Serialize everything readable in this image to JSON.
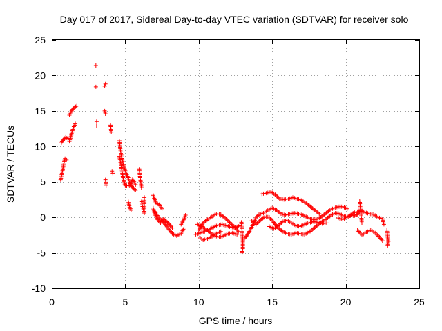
{
  "chart_data": {
    "type": "scatter",
    "title": "Day 017 of 2017, Sidereal Day-to-day VTEC variation (SDTVAR) for receiver solo",
    "xlabel": "GPS time / hours",
    "ylabel": "SDTVAR / TECUs",
    "xlim": [
      0,
      25
    ],
    "ylim": [
      -10,
      25
    ],
    "xticks": [
      0,
      5,
      10,
      15,
      20,
      25
    ],
    "yticks": [
      -10,
      -5,
      0,
      5,
      10,
      15,
      20,
      25
    ],
    "grid": true,
    "marker": "+",
    "color": "#ff0000",
    "series": [
      {
        "name": "SDTVAR",
        "tracks": [
          [
            [
              0.6,
              5.3
            ],
            [
              0.7,
              6.2
            ],
            [
              0.8,
              7.4
            ],
            [
              0.9,
              8.3
            ],
            [
              1.0,
              8.1
            ]
          ],
          [
            [
              0.65,
              10.5
            ],
            [
              0.8,
              11.0
            ],
            [
              0.95,
              11.3
            ],
            [
              1.1,
              11.1
            ]
          ],
          [
            [
              1.2,
              10.7
            ],
            [
              1.3,
              11.4
            ],
            [
              1.4,
              12.2
            ],
            [
              1.5,
              12.8
            ],
            [
              1.6,
              13.2
            ]
          ],
          [
            [
              1.2,
              14.4
            ],
            [
              1.3,
              14.8
            ],
            [
              1.4,
              15.2
            ],
            [
              1.55,
              15.5
            ],
            [
              1.7,
              15.7
            ]
          ],
          [
            [
              3.0,
              21.4
            ]
          ],
          [
            [
              3.0,
              18.4
            ]
          ],
          [
            [
              3.05,
              13.5
            ]
          ],
          [
            [
              3.05,
              12.9
            ]
          ],
          [
            [
              3.6,
              18.5
            ],
            [
              3.65,
              18.8
            ]
          ],
          [
            [
              3.6,
              15.0
            ],
            [
              3.65,
              14.6
            ]
          ],
          [
            [
              3.65,
              5.3
            ],
            [
              3.7,
              4.5
            ]
          ],
          [
            [
              4.0,
              13.0
            ],
            [
              4.05,
              12.0
            ]
          ],
          [
            [
              4.1,
              6.5
            ],
            [
              4.15,
              6.2
            ]
          ],
          [
            [
              4.6,
              10.8
            ],
            [
              4.65,
              9.9
            ],
            [
              4.7,
              9.0
            ],
            [
              4.8,
              8.1
            ],
            [
              4.9,
              7.2
            ],
            [
              5.0,
              6.6
            ],
            [
              5.1,
              6.0
            ],
            [
              5.2,
              5.6
            ],
            [
              5.3,
              4.9
            ],
            [
              5.5,
              4.2
            ],
            [
              5.7,
              3.8
            ]
          ],
          [
            [
              4.6,
              8.6
            ],
            [
              4.7,
              7.5
            ],
            [
              4.8,
              6.2
            ],
            [
              4.9,
              5.0
            ],
            [
              5.0,
              4.5
            ],
            [
              5.3,
              4.4
            ],
            [
              5.5,
              5.4
            ],
            [
              5.7,
              4.6
            ]
          ],
          [
            [
              5.2,
              2.3
            ],
            [
              5.3,
              1.4
            ],
            [
              5.4,
              1.0
            ]
          ],
          [
            [
              5.95,
              6.8
            ],
            [
              6.0,
              5.8
            ],
            [
              6.05,
              5.0
            ],
            [
              6.1,
              4.2
            ]
          ],
          [
            [
              6.1,
              2.2
            ],
            [
              6.2,
              1.3
            ],
            [
              6.3,
              0.6
            ],
            [
              6.3,
              2.8
            ]
          ],
          [
            [
              6.9,
              3.1
            ],
            [
              7.0,
              2.5
            ],
            [
              7.1,
              2.0
            ],
            [
              7.3,
              1.8
            ],
            [
              7.5,
              1.2
            ]
          ],
          [
            [
              6.9,
              1.3
            ],
            [
              7.0,
              0.5
            ],
            [
              7.2,
              -0.3
            ],
            [
              7.4,
              -0.8
            ],
            [
              7.6,
              -0.2
            ],
            [
              7.8,
              -0.6
            ],
            [
              8.0,
              -1.0
            ],
            [
              8.2,
              -1.5
            ]
          ],
          [
            [
              7.0,
              0.8
            ],
            [
              7.3,
              -0.1
            ],
            [
              7.6,
              -0.7
            ],
            [
              7.9,
              -1.5
            ],
            [
              8.2,
              -2.3
            ],
            [
              8.5,
              -2.6
            ],
            [
              8.8,
              -2.3
            ],
            [
              9.0,
              -1.5
            ]
          ],
          [
            [
              8.8,
              -1.0
            ],
            [
              9.0,
              -0.3
            ],
            [
              9.1,
              0.3
            ]
          ],
          [
            [
              9.8,
              -2.4
            ],
            [
              10.1,
              -2.2
            ],
            [
              10.4,
              -2.0
            ],
            [
              10.7,
              -1.7
            ],
            [
              11.0,
              -1.4
            ],
            [
              11.3,
              -1.1
            ],
            [
              11.6,
              -1.0
            ],
            [
              11.9,
              -1.2
            ],
            [
              12.2,
              -1.4
            ],
            [
              12.5,
              -1.4
            ],
            [
              12.8,
              -1.2
            ]
          ],
          [
            [
              9.9,
              -1.0
            ],
            [
              10.2,
              -1.3
            ],
            [
              10.5,
              -1.7
            ],
            [
              10.8,
              -2.2
            ],
            [
              11.1,
              -2.6
            ],
            [
              11.4,
              -2.8
            ],
            [
              11.7,
              -2.6
            ],
            [
              12.0,
              -2.3
            ],
            [
              12.3,
              -2.2
            ],
            [
              12.6,
              -2.4
            ]
          ],
          [
            [
              10.0,
              -1.8
            ],
            [
              10.3,
              -0.8
            ],
            [
              10.6,
              -0.3
            ],
            [
              10.9,
              0.1
            ],
            [
              11.2,
              0.5
            ],
            [
              11.5,
              0.4
            ],
            [
              11.8,
              -0.1
            ],
            [
              12.1,
              -0.7
            ],
            [
              12.4,
              -1.3
            ],
            [
              12.7,
              -2.0
            ]
          ],
          [
            [
              10.1,
              -2.9
            ],
            [
              10.3,
              -3.2
            ],
            [
              10.6,
              -3.0
            ],
            [
              10.9,
              -2.7
            ],
            [
              11.2,
              -2.3
            ],
            [
              11.5,
              -2.0
            ]
          ],
          [
            [
              12.9,
              -0.7
            ],
            [
              12.95,
              -2.0
            ],
            [
              13.0,
              -3.2
            ],
            [
              13.0,
              -4.4
            ],
            [
              12.95,
              -5.0
            ]
          ],
          [
            [
              13.1,
              -3.0
            ],
            [
              13.3,
              -2.5
            ],
            [
              13.5,
              -1.8
            ],
            [
              13.7,
              -1.0
            ],
            [
              13.9,
              0.0
            ],
            [
              14.1,
              0.4
            ],
            [
              14.4,
              0.6
            ],
            [
              14.7,
              1.0
            ],
            [
              15.0,
              1.3
            ],
            [
              15.3,
              1.0
            ],
            [
              15.6,
              0.5
            ],
            [
              15.9,
              0.3
            ],
            [
              16.2,
              0.5
            ],
            [
              16.5,
              0.6
            ],
            [
              16.8,
              0.5
            ],
            [
              17.1,
              0.3
            ],
            [
              17.4,
              0.0
            ],
            [
              17.7,
              -0.3
            ],
            [
              18.0,
              -0.3
            ],
            [
              18.3,
              0.0
            ],
            [
              18.6,
              0.5
            ],
            [
              18.9,
              1.0
            ],
            [
              19.2,
              1.3
            ],
            [
              19.5,
              1.5
            ],
            [
              19.8,
              1.5
            ],
            [
              20.1,
              1.2
            ]
          ],
          [
            [
              13.6,
              -0.5
            ],
            [
              13.9,
              -1.0
            ],
            [
              14.2,
              -0.4
            ],
            [
              14.5,
              0.1
            ],
            [
              14.8,
              0.0
            ],
            [
              15.1,
              -0.7
            ],
            [
              15.4,
              -1.5
            ],
            [
              15.7,
              -2.0
            ],
            [
              16.0,
              -2.3
            ],
            [
              16.3,
              -2.4
            ],
            [
              16.6,
              -2.2
            ],
            [
              16.9,
              -2.3
            ],
            [
              17.2,
              -2.4
            ],
            [
              17.5,
              -2.1
            ],
            [
              17.8,
              -1.6
            ],
            [
              18.1,
              -1.1
            ],
            [
              18.4,
              -0.6
            ],
            [
              18.7,
              -0.2
            ],
            [
              19.0,
              0.3
            ],
            [
              19.3,
              0.6
            ],
            [
              19.6,
              0.5
            ],
            [
              19.9,
              0.1
            ],
            [
              20.2,
              0.1
            ],
            [
              20.5,
              0.6
            ],
            [
              20.8,
              0.8
            ]
          ],
          [
            [
              14.3,
              3.3
            ],
            [
              14.6,
              3.4
            ],
            [
              14.9,
              3.6
            ],
            [
              15.2,
              3.2
            ],
            [
              15.5,
              2.6
            ],
            [
              15.8,
              2.5
            ],
            [
              16.1,
              2.6
            ],
            [
              16.4,
              2.8
            ],
            [
              16.7,
              2.6
            ],
            [
              17.0,
              2.4
            ],
            [
              17.3,
              2.0
            ],
            [
              17.6,
              1.5
            ],
            [
              17.9,
              1.0
            ],
            [
              18.2,
              0.5
            ]
          ],
          [
            [
              14.8,
              -1.3
            ],
            [
              15.1,
              -1.6
            ],
            [
              15.4,
              -1.2
            ],
            [
              15.7,
              -0.6
            ],
            [
              16.0,
              -0.4
            ],
            [
              16.3,
              -0.8
            ],
            [
              16.6,
              -1.2
            ],
            [
              16.9,
              -1.3
            ],
            [
              17.2,
              -1.0
            ],
            [
              17.5,
              -0.8
            ],
            [
              17.8,
              -0.6
            ],
            [
              18.1,
              -0.7
            ],
            [
              18.4,
              -0.9
            ],
            [
              18.7,
              -0.8
            ]
          ],
          [
            [
              19.5,
              -0.1
            ],
            [
              19.8,
              -0.3
            ],
            [
              20.1,
              0.1
            ],
            [
              20.4,
              0.3
            ],
            [
              20.7,
              0.2
            ],
            [
              21.0,
              1.0
            ],
            [
              21.3,
              0.7
            ],
            [
              21.6,
              0.5
            ],
            [
              21.9,
              0.4
            ],
            [
              22.2,
              0.0
            ],
            [
              22.5,
              -0.2
            ],
            [
              22.6,
              -1.0
            ]
          ],
          [
            [
              20.8,
              -1.8
            ],
            [
              21.1,
              -2.5
            ],
            [
              21.4,
              -2.1
            ],
            [
              21.7,
              -1.8
            ],
            [
              22.0,
              -2.2
            ],
            [
              22.3,
              -2.8
            ],
            [
              22.5,
              -3.3
            ]
          ],
          [
            [
              20.95,
              2.3
            ],
            [
              21.0,
              1.3
            ],
            [
              21.05,
              0.3
            ],
            [
              21.1,
              -0.8
            ]
          ],
          [
            [
              22.8,
              -1.8
            ],
            [
              22.85,
              -2.6
            ],
            [
              22.9,
              -3.4
            ],
            [
              22.85,
              -4.0
            ]
          ]
        ]
      }
    ]
  }
}
